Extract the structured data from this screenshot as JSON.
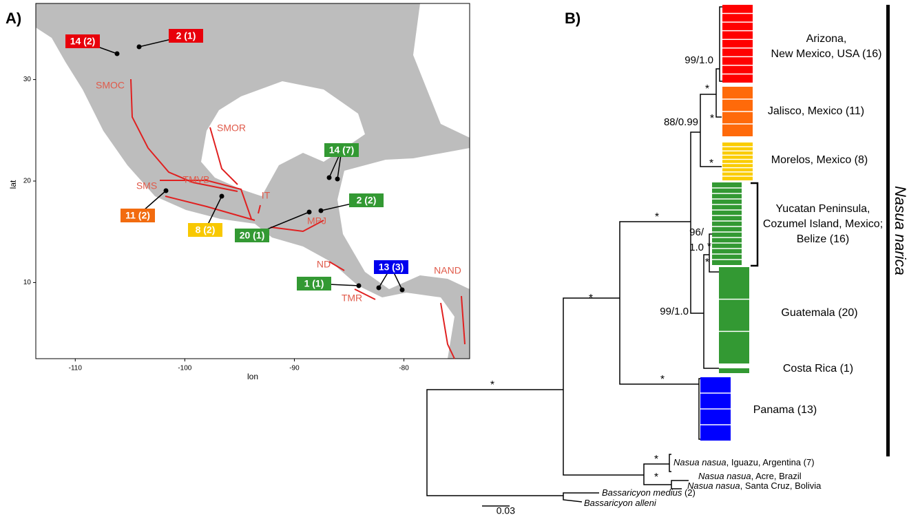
{
  "panel_a": {
    "label": "A)",
    "map": {
      "xlabel": "lon",
      "ylabel": "lat",
      "xlim": [
        -113.6,
        -74
      ],
      "ylim": [
        2.5,
        37.5
      ],
      "xticks": [
        -110,
        -100,
        -90,
        -80
      ],
      "yticks": [
        10,
        20,
        30
      ]
    },
    "regions": [
      "SMOC",
      "SMOR",
      "SMS",
      "TMVB",
      "IT",
      "MPJ",
      "ND",
      "TMR",
      "NAND"
    ],
    "samples": [
      {
        "label": "14 (2)",
        "color": "#e8000b"
      },
      {
        "label": "2 (1)",
        "color": "#e8000b"
      },
      {
        "label": "11 (2)",
        "color": "#f26b0f"
      },
      {
        "label": "8 (2)",
        "color": "#f8c800"
      },
      {
        "label": "20 (1)",
        "color": "#339933"
      },
      {
        "label": "2 (2)",
        "color": "#339933"
      },
      {
        "label": "14 (7)",
        "color": "#339933"
      },
      {
        "label": "1 (1)",
        "color": "#339933"
      },
      {
        "label": "13 (3)",
        "color": "#0000ee"
      }
    ]
  },
  "panel_b": {
    "label": "B)",
    "supports": [
      "99/1.0",
      "*",
      "*",
      "88/0.99",
      "*",
      "*",
      "*",
      "96/",
      "1.0",
      "*",
      "99/1.0",
      "*",
      "*",
      "*",
      "*",
      "*"
    ],
    "clades": [
      {
        "lines": [
          "Arizona,",
          "New Mexico, USA (16)"
        ],
        "color": "#ff0000"
      },
      {
        "lines": [
          "Jalisco, Mexico (11)"
        ],
        "color": "#ff6a0a"
      },
      {
        "lines": [
          "Morelos, Mexico (8)"
        ],
        "color": "#facc00"
      },
      {
        "lines": [
          "Yucatan Peninsula,",
          "Cozumel Island, Mexico;",
          "Belize (16)"
        ],
        "color": "#339933"
      },
      {
        "lines": [
          "Guatemala (20)"
        ],
        "color": "#339933"
      },
      {
        "lines": [
          "Costa Rica (1)"
        ],
        "color": "#339933"
      },
      {
        "lines": [
          "Panama (13)"
        ],
        "color": "#0000ff"
      }
    ],
    "species_label": "Nasua narica",
    "outgroups": [
      {
        "species": "Nasua nasua",
        "locality": ", Iguazu, Argentina (7)"
      },
      {
        "species": "Nasua nasua",
        "locality": ", Acre, Brazil"
      },
      {
        "species": "Nasua nasua",
        "locality": ", Santa Cruz, Bolivia"
      },
      {
        "species": "Bassaricyon medius",
        "locality": " (2)"
      },
      {
        "species": "Bassaricyon alleni",
        "locality": ""
      }
    ],
    "scale_bar": "0.03"
  }
}
